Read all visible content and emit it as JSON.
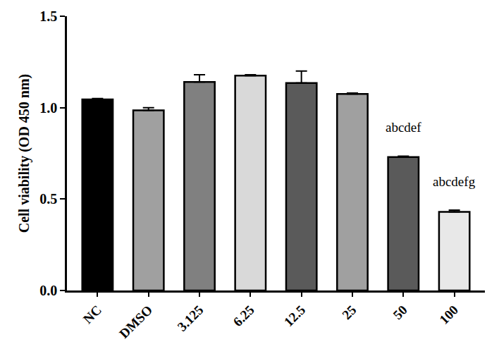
{
  "chart_data": {
    "type": "bar",
    "y_label": "Cell viability (OD 450 nm)",
    "categories": [
      "NC",
      "DMSO",
      "3.125",
      "6.25",
      "12.5",
      "25",
      "50",
      "100"
    ],
    "values": [
      1.045,
      0.985,
      1.14,
      1.175,
      1.135,
      1.075,
      0.73,
      0.43
    ],
    "errors": [
      0.005,
      0.015,
      0.04,
      0.005,
      0.065,
      0.005,
      0.005,
      0.01
    ],
    "colors": [
      "#000000",
      "#a0a0a0",
      "#808080",
      "#d9d9d9",
      "#5a5a5a",
      "#a0a0a0",
      "#5a5a5a",
      "#e8e8e8"
    ],
    "ylim": [
      0,
      1.5
    ],
    "yticks": [
      {
        "value": 0,
        "label": "0.0"
      },
      {
        "value": 0.5,
        "label": "0.5"
      },
      {
        "value": 1,
        "label": "1.0"
      },
      {
        "value": 1.5,
        "label": "1.5"
      }
    ],
    "grid": false,
    "annotations": [
      {
        "text": "abcdef",
        "category": "50"
      },
      {
        "text": "abcdefg",
        "category": "100"
      }
    ]
  }
}
